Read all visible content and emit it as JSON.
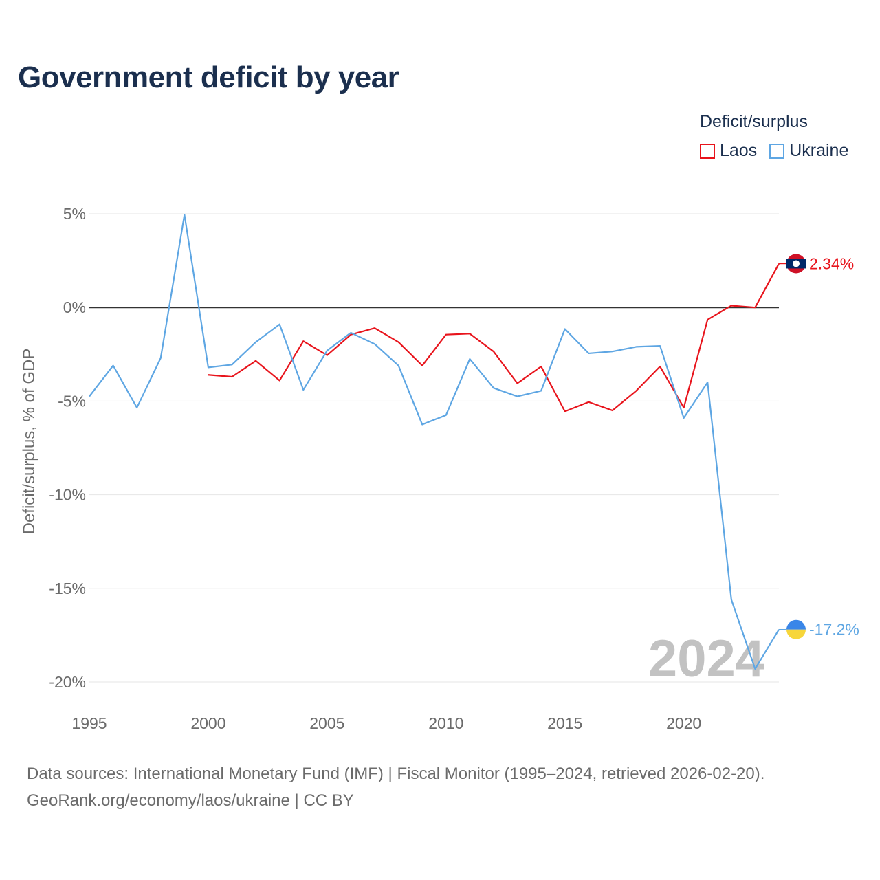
{
  "title": "Government deficit by year",
  "legend": {
    "title": "Deficit/surplus",
    "items": [
      {
        "label": "Laos",
        "color": "#e8141c"
      },
      {
        "label": "Ukraine",
        "color": "#5ea6e3"
      }
    ]
  },
  "footer": {
    "line1": "Data sources: International Monetary Fund (IMF) | Fiscal Monitor (1995–2024, retrieved 2026-02-20).",
    "line2": "GeoRank.org/economy/laos/ukraine | CC BY"
  },
  "chart_data": {
    "type": "line",
    "ylabel": "Deficit/surplus, % of GDP",
    "xlabel": "",
    "xlim": [
      1995,
      2024
    ],
    "ylim": [
      -20,
      5
    ],
    "y_ticks": [
      5,
      0,
      -5,
      -10,
      -15,
      -20
    ],
    "y_tick_labels": [
      "5%",
      "0%",
      "-5%",
      "-10%",
      "-15%",
      "-20%"
    ],
    "x_ticks": [
      1995,
      2000,
      2005,
      2010,
      2015,
      2020
    ],
    "x_tick_labels": [
      "1995",
      "2000",
      "2005",
      "2010",
      "2015",
      "2020"
    ],
    "watermark_year": "2024",
    "grid": true,
    "series": [
      {
        "name": "Laos",
        "color": "#e8141c",
        "end_label": "2.34%",
        "x": [
          2000,
          2001,
          2002,
          2003,
          2004,
          2005,
          2006,
          2007,
          2008,
          2009,
          2010,
          2011,
          2012,
          2013,
          2014,
          2015,
          2016,
          2017,
          2018,
          2019,
          2020,
          2021,
          2022,
          2023,
          2024
        ],
        "values": [
          -3.6,
          -3.7,
          -2.85,
          -3.9,
          -1.8,
          -2.55,
          -1.45,
          -1.1,
          -1.85,
          -3.1,
          -1.45,
          -1.4,
          -2.35,
          -4.05,
          -3.15,
          -5.55,
          -5.05,
          -5.5,
          -4.45,
          -3.15,
          -5.35,
          -0.65,
          0.1,
          0.0,
          2.34
        ]
      },
      {
        "name": "Ukraine",
        "color": "#5ea6e3",
        "end_label": "-17.2%",
        "x": [
          1995,
          1996,
          1997,
          1998,
          1999,
          2000,
          2001,
          2002,
          2003,
          2004,
          2005,
          2006,
          2007,
          2008,
          2009,
          2010,
          2011,
          2012,
          2013,
          2014,
          2015,
          2016,
          2017,
          2018,
          2019,
          2020,
          2021,
          2022,
          2023,
          2024
        ],
        "values": [
          -4.75,
          -3.1,
          -5.35,
          -2.7,
          4.95,
          -3.2,
          -3.05,
          -1.85,
          -0.9,
          -4.4,
          -2.3,
          -1.35,
          -1.95,
          -3.1,
          -6.25,
          -5.75,
          -2.75,
          -4.3,
          -4.75,
          -4.45,
          -1.15,
          -2.45,
          -2.35,
          -2.1,
          -2.05,
          -5.9,
          -4.0,
          -15.6,
          -19.3,
          -17.2
        ]
      }
    ]
  }
}
